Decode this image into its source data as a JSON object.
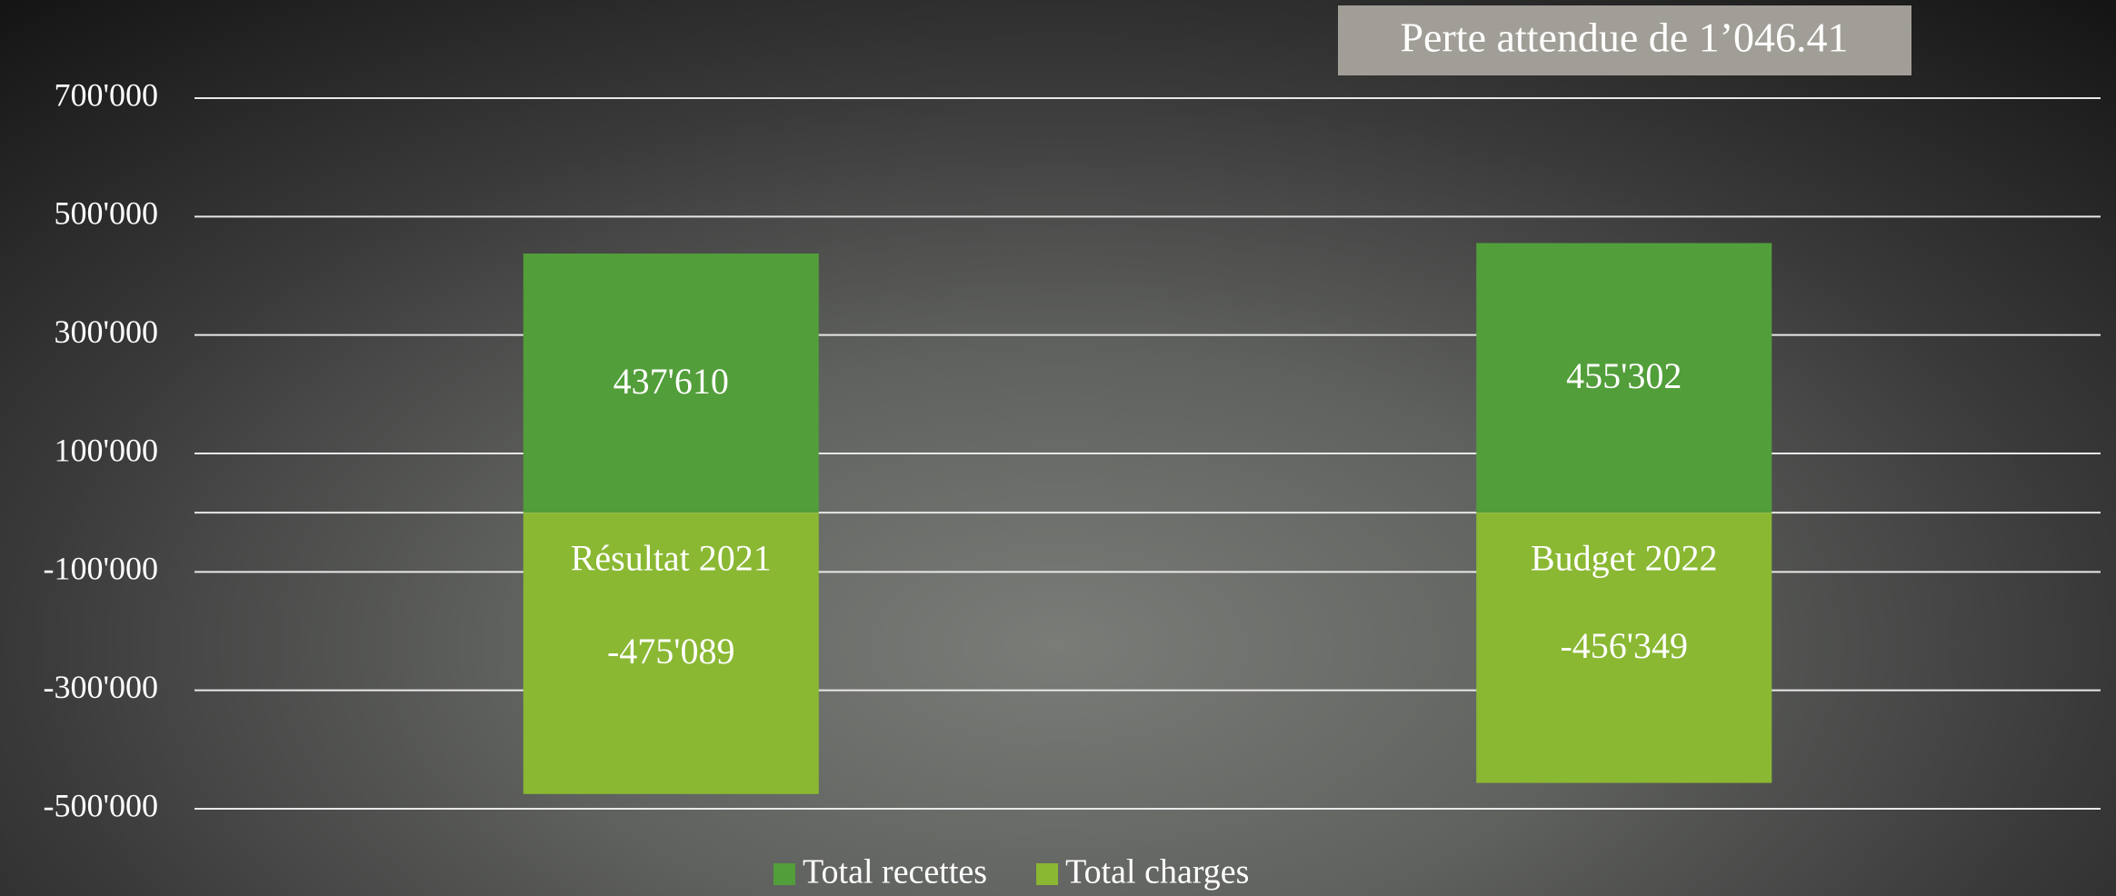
{
  "chart_data": {
    "type": "bar",
    "stacked": true,
    "annotation": "Perte attendue de 1’046.41",
    "categories": [
      "Résultat 2021",
      "Budget 2022"
    ],
    "series": [
      {
        "name": "Total recettes",
        "color": "#529e3a",
        "values": [
          437610,
          455302
        ],
        "value_labels": [
          "437'610",
          "455'302"
        ]
      },
      {
        "name": "Total charges",
        "color": "#8ab833",
        "values": [
          -475089,
          -456349
        ],
        "value_labels": [
          "-475'089",
          "-456'349"
        ]
      }
    ],
    "ylim": [
      -500000,
      700000
    ],
    "yticks": [
      {
        "value": 700000,
        "label": "700'000"
      },
      {
        "value": 500000,
        "label": "500'000"
      },
      {
        "value": 300000,
        "label": "300'000"
      },
      {
        "value": 100000,
        "label": "100'000"
      },
      {
        "value": -100000,
        "label": "-100'000"
      },
      {
        "value": -300000,
        "label": "-300'000"
      },
      {
        "value": -500000,
        "label": "-500'000"
      }
    ],
    "grid": true,
    "legend": "bottom"
  }
}
